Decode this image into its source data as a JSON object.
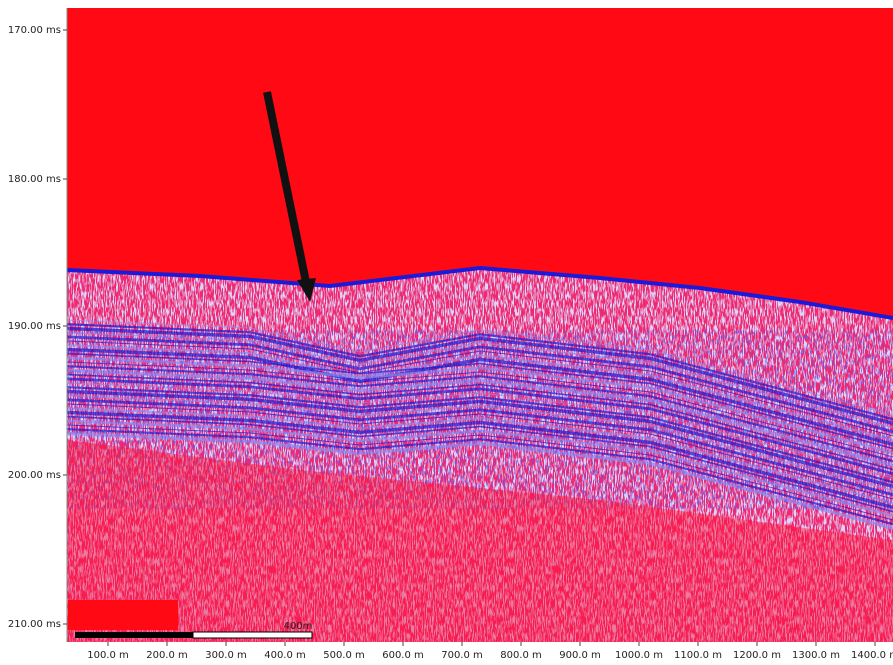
{
  "y_axis": {
    "labels": [
      "170.00 ms",
      "180.00 ms",
      "190.00 ms",
      "200.00 ms",
      "210.00 ms"
    ]
  },
  "x_axis": {
    "labels": [
      "100.0 m",
      "200.0 m",
      "300.0 m",
      "400.0 m",
      "500.0 m",
      "600.0 m",
      "700.0 m",
      "800.0 m",
      "900.0 m",
      "1000.0 m",
      "1100.0 m",
      "1200.0 m",
      "1300.0 m",
      "1400.0 m"
    ]
  },
  "scale_bar": {
    "label": "400m"
  }
}
